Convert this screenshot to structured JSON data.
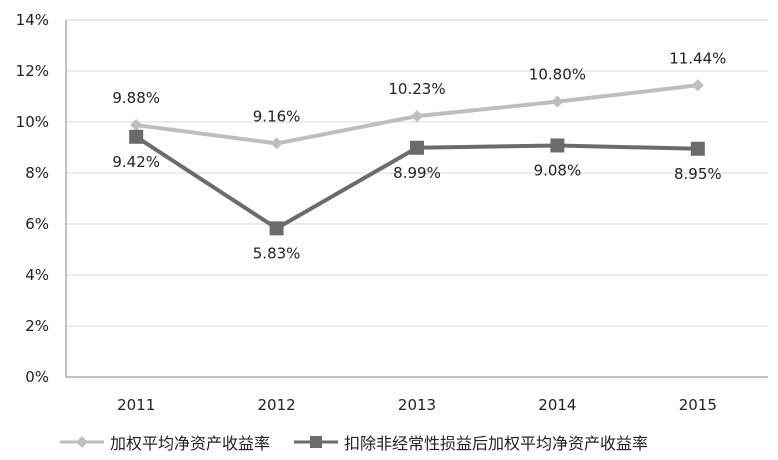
{
  "chart_data": {
    "type": "line",
    "categories": [
      "2011",
      "2012",
      "2013",
      "2014",
      "2015"
    ],
    "series": [
      {
        "name": "加权平均净资产收益率",
        "values": [
          9.88,
          9.16,
          10.23,
          10.8,
          11.44
        ],
        "labels": [
          "9.88%",
          "9.16%",
          "10.23%",
          "10.80%",
          "11.44%"
        ],
        "color": "#BEBEBE",
        "marker": "diamond"
      },
      {
        "name": "扣除非经常性损益后加权平均净资产收益率",
        "values": [
          9.42,
          5.83,
          8.99,
          9.08,
          8.95
        ],
        "labels": [
          "9.42%",
          "5.83%",
          "8.99%",
          "9.08%",
          "8.95%"
        ],
        "color": "#6B6B6B",
        "marker": "square"
      }
    ],
    "y_ticks": [
      "0%",
      "2%",
      "4%",
      "6%",
      "8%",
      "10%",
      "12%",
      "14%"
    ],
    "ylim": [
      0,
      14
    ],
    "grid": true,
    "legend_position": "bottom-left"
  }
}
